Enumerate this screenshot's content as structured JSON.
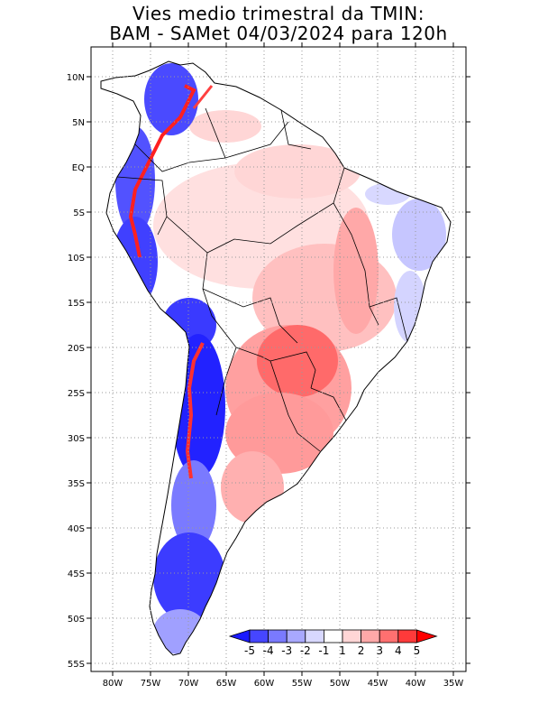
{
  "title": {
    "line1": "Vies medio trimestral da TMIN:",
    "line2": "BAM - SAMet 04/03/2024  para 120h"
  },
  "axes": {
    "lon_ticks": [
      "80W",
      "75W",
      "70W",
      "65W",
      "60W",
      "55W",
      "50W",
      "45W",
      "40W",
      "35W"
    ],
    "lat_ticks": [
      "10N",
      "5N",
      "EQ",
      "5S",
      "10S",
      "15S",
      "20S",
      "25S",
      "30S",
      "35S",
      "40S",
      "45S",
      "50S",
      "55S"
    ],
    "grid": "dotted"
  },
  "colorbar": {
    "labels": [
      "-5",
      "-4",
      "-3",
      "-2",
      "-1",
      "1",
      "2",
      "3",
      "4",
      "5"
    ],
    "colors": [
      "#1a1aff",
      "#4646ff",
      "#7a7aff",
      "#a8a8ff",
      "#d8d8ff",
      "#ffffff",
      "#ffd6d6",
      "#ffa8a8",
      "#ff7070",
      "#ff3a3a",
      "#ff0000"
    ]
  }
}
